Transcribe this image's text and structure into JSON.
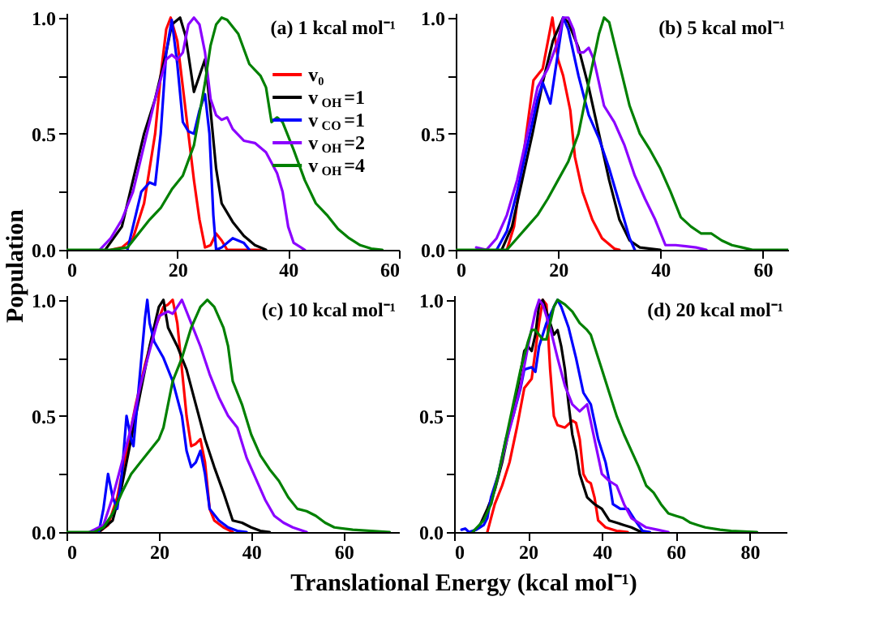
{
  "chart_data": [
    {
      "type": "line",
      "title": "(a) 1 kcal mol⁻¹",
      "ylabel": "Population",
      "xlim": [
        0,
        60
      ],
      "xticks": [
        0,
        20,
        40,
        60
      ],
      "ylim": [
        0,
        1.02
      ],
      "yticks": [
        {
          "value": 0,
          "label": "0.0"
        },
        {
          "value": 0.25,
          "label": null
        },
        {
          "value": 0.5,
          "label": "0.5"
        },
        {
          "value": 0.75,
          "label": null
        },
        {
          "value": 1.0,
          "label": "1.0"
        }
      ],
      "grid": false,
      "legend": "right",
      "line_style": "solid",
      "marker": "none",
      "series": [
        {
          "name": "v₀",
          "color": "#ff0000",
          "x": [
            8,
            10,
            12,
            14,
            16,
            17,
            18,
            18.8,
            20,
            21,
            22,
            23,
            24,
            25,
            26,
            27,
            28,
            29,
            35
          ],
          "values": [
            0,
            0.01,
            0.05,
            0.2,
            0.5,
            0.75,
            0.95,
            1.0,
            0.9,
            0.7,
            0.5,
            0.3,
            0.13,
            0.01,
            0.02,
            0.07,
            0.04,
            0,
            0
          ]
        },
        {
          "name": "v$_{OH}$=1",
          "color": "#000000",
          "x": [
            7,
            10,
            12,
            14,
            16,
            18,
            19,
            20.5,
            21.5,
            23,
            24,
            25,
            26,
            27,
            28,
            30,
            32,
            34,
            36
          ],
          "values": [
            0,
            0.1,
            0.3,
            0.5,
            0.65,
            0.85,
            0.97,
            1.0,
            0.92,
            0.68,
            0.75,
            0.82,
            0.6,
            0.35,
            0.2,
            0.12,
            0.06,
            0.02,
            0
          ]
        },
        {
          "name": "v$_{CO}$=1",
          "color": "#0000ff",
          "x": [
            11,
            12,
            13.5,
            15,
            16,
            17,
            18,
            19,
            20,
            21,
            22,
            23,
            24,
            25,
            25.8,
            26.5,
            27,
            28,
            30,
            32,
            33
          ],
          "values": [
            0,
            0.1,
            0.25,
            0.29,
            0.28,
            0.5,
            0.85,
            0.99,
            0.8,
            0.55,
            0.51,
            0.5,
            0.6,
            0.67,
            0.5,
            0.15,
            0,
            0.01,
            0.05,
            0.03,
            0
          ]
        },
        {
          "name": "v$_{OH}$=2",
          "color": "#8b00ff",
          "x": [
            6,
            8,
            10,
            12,
            14,
            16,
            18,
            19,
            20,
            21,
            22,
            23,
            24,
            25,
            26,
            27,
            28,
            29,
            30,
            32,
            34,
            36,
            38,
            39,
            40,
            41,
            43
          ],
          "values": [
            0,
            0.05,
            0.13,
            0.25,
            0.45,
            0.65,
            0.82,
            0.84,
            0.82,
            0.85,
            0.97,
            1.0,
            0.97,
            0.85,
            0.65,
            0.58,
            0.56,
            0.57,
            0.52,
            0.47,
            0.46,
            0.42,
            0.33,
            0.25,
            0.1,
            0.03,
            0
          ]
        },
        {
          "name": "v$_{OH}$=4",
          "color": "#008000",
          "x": [
            0,
            8,
            11,
            13,
            15,
            17,
            19,
            21,
            23,
            25,
            26,
            27,
            28,
            29,
            31,
            33,
            35,
            36,
            37,
            38,
            39,
            41,
            43,
            45,
            47,
            49,
            51,
            53,
            55,
            57
          ],
          "values": [
            0,
            0,
            0.01,
            0.07,
            0.13,
            0.18,
            0.26,
            0.32,
            0.45,
            0.72,
            0.88,
            0.97,
            1.0,
            0.99,
            0.93,
            0.8,
            0.75,
            0.7,
            0.55,
            0.57,
            0.55,
            0.43,
            0.3,
            0.2,
            0.15,
            0.09,
            0.05,
            0.02,
            0.005,
            0
          ]
        }
      ]
    },
    {
      "type": "line",
      "title": "(b) 5 kcal mol⁻¹",
      "xlim": [
        0,
        65
      ],
      "xticks": [
        0,
        20,
        40,
        60
      ],
      "ylim": [
        0,
        1.02
      ],
      "yticks": [
        {
          "value": 0,
          "label": "0.0"
        },
        {
          "value": 0.25,
          "label": null
        },
        {
          "value": 0.5,
          "label": "0.5"
        },
        {
          "value": 0.75,
          "label": null
        },
        {
          "value": 1.0,
          "label": "1.0"
        }
      ],
      "grid": false,
      "line_style": "solid",
      "marker": "none",
      "series": [
        {
          "color": "#ff0000",
          "x": [
            10,
            11.4,
            13.8,
            15.2,
            17,
            18.9,
            20,
            21,
            22.4,
            23.3,
            24.8,
            26.7,
            28.6,
            31,
            32
          ],
          "values": [
            0,
            0.1,
            0.5,
            0.73,
            0.78,
            1.0,
            0.82,
            0.75,
            0.6,
            0.4,
            0.25,
            0.13,
            0.05,
            0.005,
            0
          ]
        },
        {
          "color": "#000000",
          "x": [
            9,
            11,
            13,
            15,
            17,
            19,
            21,
            22,
            24,
            26,
            28,
            30,
            32,
            34,
            36,
            40
          ],
          "values": [
            0,
            0.1,
            0.3,
            0.5,
            0.72,
            0.9,
            1.0,
            0.98,
            0.87,
            0.7,
            0.5,
            0.3,
            0.13,
            0.04,
            0.01,
            0
          ]
        },
        {
          "color": "#0000ff",
          "x": [
            8,
            10,
            12,
            14,
            16,
            17,
            18.5,
            20,
            21,
            22,
            24,
            26,
            28,
            30,
            32,
            34,
            35
          ],
          "values": [
            0,
            0.08,
            0.25,
            0.45,
            0.65,
            0.72,
            0.63,
            0.85,
            1.0,
            0.95,
            0.75,
            0.58,
            0.48,
            0.35,
            0.2,
            0.05,
            0
          ]
        },
        {
          "color": "#8b00ff",
          "x": [
            4,
            6,
            8,
            10,
            12,
            14,
            16,
            18,
            20,
            21,
            22,
            23,
            24,
            25,
            26,
            27,
            29,
            31,
            33,
            35,
            37,
            39,
            41,
            43,
            45,
            47,
            49
          ],
          "values": [
            0.01,
            0,
            0.05,
            0.15,
            0.3,
            0.5,
            0.7,
            0.78,
            0.9,
            1.0,
            1.0,
            0.95,
            0.85,
            0.85,
            0.87,
            0.82,
            0.62,
            0.55,
            0.45,
            0.32,
            0.22,
            0.13,
            0.02,
            0.02,
            0.015,
            0.01,
            0
          ]
        },
        {
          "color": "#008000",
          "x": [
            0,
            10,
            12,
            14,
            16,
            18,
            20,
            22,
            24,
            26,
            28,
            29,
            30,
            32,
            34,
            36,
            38,
            40,
            42,
            44,
            46,
            48,
            50,
            52,
            54,
            56,
            58,
            65
          ],
          "values": [
            0,
            0,
            0.05,
            0.1,
            0.15,
            0.22,
            0.3,
            0.38,
            0.5,
            0.72,
            0.93,
            1.0,
            0.98,
            0.8,
            0.62,
            0.5,
            0.43,
            0.35,
            0.25,
            0.14,
            0.1,
            0.07,
            0.07,
            0.04,
            0.02,
            0.01,
            0,
            0
          ]
        }
      ]
    },
    {
      "type": "line",
      "title": "(c) 10 kcal mol⁻¹",
      "xlabel": "Translational Energy (kcal mol⁻¹)",
      "xlim": [
        0,
        72
      ],
      "xticks": [
        0,
        20,
        40,
        60
      ],
      "ylim": [
        0,
        1.02
      ],
      "yticks": [
        {
          "value": 0,
          "label": "0.0"
        },
        {
          "value": 0.25,
          "label": null
        },
        {
          "value": 0.5,
          "label": "0.5"
        },
        {
          "value": 0.75,
          "label": null
        },
        {
          "value": 1.0,
          "label": "1.0"
        }
      ],
      "grid": false,
      "line_style": "solid",
      "marker": "none",
      "series": [
        {
          "color": "#ff0000",
          "x": [
            7,
            9,
            11,
            13,
            15,
            17,
            19,
            21,
            22,
            23,
            24,
            25,
            26,
            27,
            28,
            29,
            30,
            31,
            32,
            34,
            36
          ],
          "values": [
            0,
            0.03,
            0.15,
            0.35,
            0.55,
            0.72,
            0.87,
            0.97,
            0.98,
            1.0,
            0.9,
            0.7,
            0.5,
            0.37,
            0.38,
            0.4,
            0.3,
            0.1,
            0.05,
            0.02,
            0
          ]
        },
        {
          "color": "#000000",
          "x": [
            7,
            10,
            12,
            14,
            16,
            18,
            20,
            21,
            22,
            24,
            26,
            28,
            30,
            32,
            34,
            36,
            38,
            40,
            42,
            44
          ],
          "values": [
            0,
            0.05,
            0.2,
            0.4,
            0.6,
            0.8,
            0.97,
            1.0,
            0.88,
            0.8,
            0.7,
            0.55,
            0.4,
            0.28,
            0.17,
            0.05,
            0.04,
            0.02,
            0.005,
            0
          ]
        },
        {
          "color": "#0000ff",
          "x": [
            7,
            8,
            9,
            10,
            11,
            12,
            13,
            14,
            14.5,
            15,
            16,
            17,
            17.5,
            18,
            19,
            21,
            23,
            25,
            26,
            27,
            28,
            29,
            30,
            31,
            33,
            35,
            37,
            39
          ],
          "values": [
            0,
            0.1,
            0.25,
            0.15,
            0.1,
            0.25,
            0.5,
            0.4,
            0.37,
            0.48,
            0.7,
            0.92,
            1.0,
            0.9,
            0.82,
            0.75,
            0.65,
            0.5,
            0.35,
            0.28,
            0.3,
            0.35,
            0.25,
            0.1,
            0.05,
            0.02,
            0.005,
            0
          ]
        },
        {
          "color": "#8b00ff",
          "x": [
            5,
            8,
            10,
            12,
            14,
            16,
            18,
            20,
            22,
            23,
            24,
            25,
            27,
            29,
            31,
            33,
            35,
            37,
            39,
            41,
            43,
            45,
            47,
            49,
            52
          ],
          "values": [
            0,
            0.03,
            0.15,
            0.3,
            0.45,
            0.63,
            0.78,
            0.93,
            0.95,
            0.94,
            0.97,
            1.0,
            0.9,
            0.8,
            0.68,
            0.58,
            0.5,
            0.45,
            0.32,
            0.23,
            0.14,
            0.07,
            0.04,
            0.02,
            0
          ]
        },
        {
          "color": "#008000",
          "x": [
            0,
            6,
            8,
            10,
            12,
            14,
            16,
            18,
            20,
            21,
            23,
            25,
            27,
            29,
            30.5,
            32,
            34,
            35,
            36,
            38,
            40,
            42,
            44,
            46,
            48,
            50,
            52,
            54,
            56,
            58,
            62,
            66,
            70
          ],
          "values": [
            0,
            0,
            0.02,
            0.08,
            0.17,
            0.25,
            0.3,
            0.35,
            0.4,
            0.45,
            0.65,
            0.75,
            0.88,
            0.97,
            1.0,
            0.97,
            0.88,
            0.8,
            0.65,
            0.55,
            0.42,
            0.33,
            0.27,
            0.22,
            0.15,
            0.1,
            0.09,
            0.07,
            0.04,
            0.02,
            0.01,
            0.005,
            0
          ]
        }
      ]
    },
    {
      "type": "line",
      "title": "(d) 20 kcal mol⁻¹",
      "xlim": [
        0,
        90
      ],
      "xticks": [
        0,
        20,
        40,
        60,
        80
      ],
      "ylim": [
        0,
        1.02
      ],
      "yticks": [
        {
          "value": 0,
          "label": "0.0"
        },
        {
          "value": 0.25,
          "label": null
        },
        {
          "value": 0.5,
          "label": "0.5"
        },
        {
          "value": 0.75,
          "label": null
        },
        {
          "value": 1.0,
          "label": "1.0"
        }
      ],
      "grid": false,
      "line_style": "solid",
      "marker": "none",
      "series": [
        {
          "color": "#ff0000",
          "x": [
            9,
            11,
            13,
            15,
            17,
            19,
            20,
            21,
            22,
            23,
            24,
            25,
            26,
            27,
            28,
            30,
            32,
            33,
            34,
            35,
            36,
            37,
            38,
            39,
            41,
            44,
            47
          ],
          "values": [
            0,
            0.12,
            0.2,
            0.3,
            0.45,
            0.62,
            0.64,
            0.66,
            0.78,
            0.9,
            1.0,
            0.98,
            0.7,
            0.5,
            0.46,
            0.45,
            0.48,
            0.47,
            0.4,
            0.25,
            0.22,
            0.21,
            0.15,
            0.05,
            0.02,
            0.005,
            0
          ]
        },
        {
          "color": "#000000",
          "x": [
            5,
            7,
            9,
            11,
            13,
            15,
            17,
            19,
            20,
            21,
            22,
            23,
            24,
            25,
            26,
            27,
            28,
            29,
            30,
            31,
            32,
            33,
            34,
            36,
            38,
            40,
            42,
            44,
            46,
            48,
            50,
            52
          ],
          "values": [
            0,
            0.03,
            0.1,
            0.18,
            0.3,
            0.45,
            0.6,
            0.78,
            0.8,
            0.78,
            0.85,
            0.98,
            1.0,
            0.95,
            0.9,
            0.85,
            0.87,
            0.8,
            0.7,
            0.55,
            0.42,
            0.35,
            0.25,
            0.15,
            0.12,
            0.1,
            0.05,
            0.04,
            0.03,
            0.02,
            0.005,
            0
          ]
        },
        {
          "color": "#0000ff",
          "x": [
            2,
            3,
            4,
            6,
            8,
            9,
            10,
            12,
            14,
            16,
            18,
            19,
            21,
            22,
            23,
            25,
            27,
            28,
            29,
            31,
            33,
            35,
            37,
            39,
            41,
            42,
            43,
            45,
            47,
            49,
            51,
            53
          ],
          "values": [
            0.01,
            0.015,
            0,
            0.01,
            0.03,
            0.06,
            0.15,
            0.25,
            0.4,
            0.5,
            0.62,
            0.7,
            0.71,
            0.69,
            0.8,
            0.9,
            0.97,
            1.0,
            0.97,
            0.88,
            0.75,
            0.6,
            0.55,
            0.4,
            0.3,
            0.22,
            0.12,
            0.1,
            0.1,
            0.05,
            0.005,
            0
          ]
        },
        {
          "color": "#8b00ff",
          "x": [
            10,
            12,
            14,
            16,
            18,
            20,
            22,
            23,
            24,
            26,
            28,
            30,
            32,
            34,
            36,
            38,
            40,
            42,
            44,
            46,
            48,
            50,
            52,
            55,
            58
          ],
          "values": [
            0.12,
            0.25,
            0.38,
            0.5,
            0.63,
            0.8,
            0.95,
            1.0,
            0.98,
            0.88,
            0.75,
            0.63,
            0.55,
            0.52,
            0.55,
            0.4,
            0.25,
            0.22,
            0.2,
            0.12,
            0.06,
            0.04,
            0.02,
            0.01,
            0
          ]
        },
        {
          "color": "#008000",
          "x": [
            5,
            8,
            10,
            12,
            14,
            16,
            18,
            20,
            21,
            22,
            24,
            25,
            26,
            27,
            28,
            30,
            32,
            34,
            36,
            37,
            38,
            40,
            42,
            44,
            46,
            48,
            50,
            52,
            54,
            56,
            58,
            60,
            62,
            64,
            66,
            68,
            72,
            75,
            82
          ],
          "values": [
            0,
            0.05,
            0.12,
            0.25,
            0.4,
            0.55,
            0.7,
            0.82,
            0.87,
            0.87,
            0.83,
            0.83,
            0.9,
            0.97,
            1.0,
            0.98,
            0.95,
            0.9,
            0.87,
            0.85,
            0.8,
            0.7,
            0.6,
            0.5,
            0.42,
            0.35,
            0.28,
            0.2,
            0.17,
            0.12,
            0.08,
            0.07,
            0.06,
            0.04,
            0.03,
            0.02,
            0.01,
            0.005,
            0
          ]
        }
      ]
    }
  ]
}
